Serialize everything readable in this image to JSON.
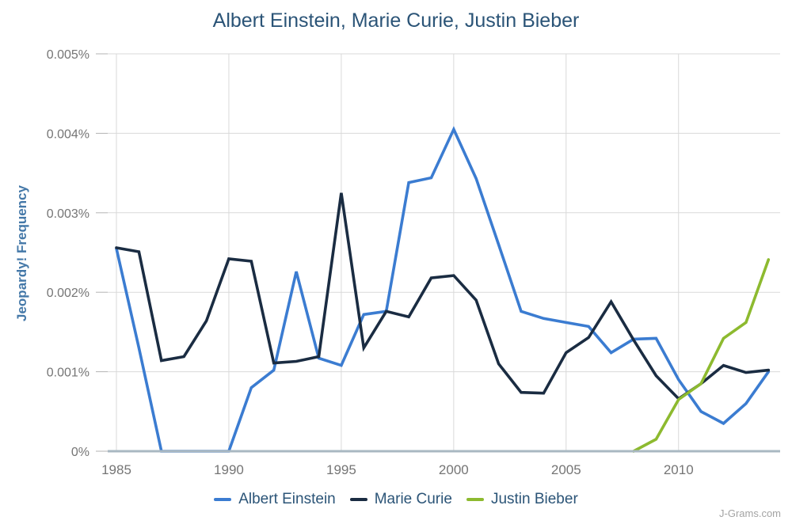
{
  "watermark": "J-Grams.com",
  "colors": {
    "title": "#2b5477",
    "axis_title": "#4478a8",
    "tick_label": "#757575",
    "gridline": "#d9d9d9",
    "tick_mark": "#b3b3b3",
    "baseline": "#a9b8c2",
    "einstein": "#3b7cd1",
    "curie": "#1a2c42",
    "bieber": "#8dba2f"
  },
  "chart_data": {
    "type": "line",
    "title": "Albert Einstein, Marie Curie, Justin Bieber",
    "xlabel": "",
    "ylabel": "Jeopardy! Frequency",
    "grid": true,
    "legend_position": "bottom",
    "ylim": [
      0,
      0.005
    ],
    "xlim": [
      1984.6,
      2014.5
    ],
    "x": [
      1985,
      1986,
      1987,
      1988,
      1989,
      1990,
      1991,
      1992,
      1993,
      1994,
      1995,
      1996,
      1997,
      1998,
      1999,
      2000,
      2001,
      2002,
      2003,
      2004,
      2005,
      2006,
      2007,
      2008,
      2009,
      2010,
      2011,
      2012,
      2013,
      2014
    ],
    "yticks": {
      "values": [
        0,
        0.001,
        0.002,
        0.003,
        0.004,
        0.005
      ],
      "labels": [
        "0%",
        "0.001%",
        "0.002%",
        "0.003%",
        "0.004%",
        "0.005%"
      ]
    },
    "xticks": {
      "values": [
        1985,
        1990,
        1995,
        2000,
        2005,
        2010
      ],
      "labels": [
        "1985",
        "1990",
        "1995",
        "2000",
        "2005",
        "2010"
      ]
    },
    "series": [
      {
        "name": "Albert Einstein",
        "color": "#3b7cd1",
        "values": [
          0.00255,
          0.0013,
          0,
          0,
          0,
          0,
          0.0008,
          0.00102,
          0.00226,
          0.00117,
          0.00108,
          0.00172,
          0.00176,
          0.00338,
          0.00344,
          0.00405,
          0.00343,
          0.0026,
          0.00176,
          0.00167,
          0.00162,
          0.00157,
          0.00124,
          0.00141,
          0.00142,
          0.0009,
          0.0005,
          0.00035,
          0.0006,
          0.001
        ]
      },
      {
        "name": "Marie Curie",
        "color": "#1a2c42",
        "values": [
          0.00256,
          0.00251,
          0.00114,
          0.00119,
          0.00164,
          0.00242,
          0.00239,
          0.00111,
          0.00113,
          0.00119,
          0.00325,
          0.0013,
          0.00176,
          0.00169,
          0.00218,
          0.00221,
          0.0019,
          0.0011,
          0.00074,
          0.00073,
          0.00124,
          0.00143,
          0.00188,
          0.0014,
          0.00095,
          0.00066,
          0.00085,
          0.00108,
          0.00099,
          0.00102
        ]
      },
      {
        "name": "Justin Bieber",
        "color": "#8dba2f",
        "values": [
          null,
          null,
          null,
          null,
          null,
          null,
          null,
          null,
          null,
          null,
          null,
          null,
          null,
          null,
          null,
          null,
          null,
          null,
          null,
          null,
          null,
          null,
          null,
          0,
          0.00015,
          0.00065,
          0.00085,
          0.00142,
          0.00162,
          0.00241
        ]
      }
    ]
  }
}
